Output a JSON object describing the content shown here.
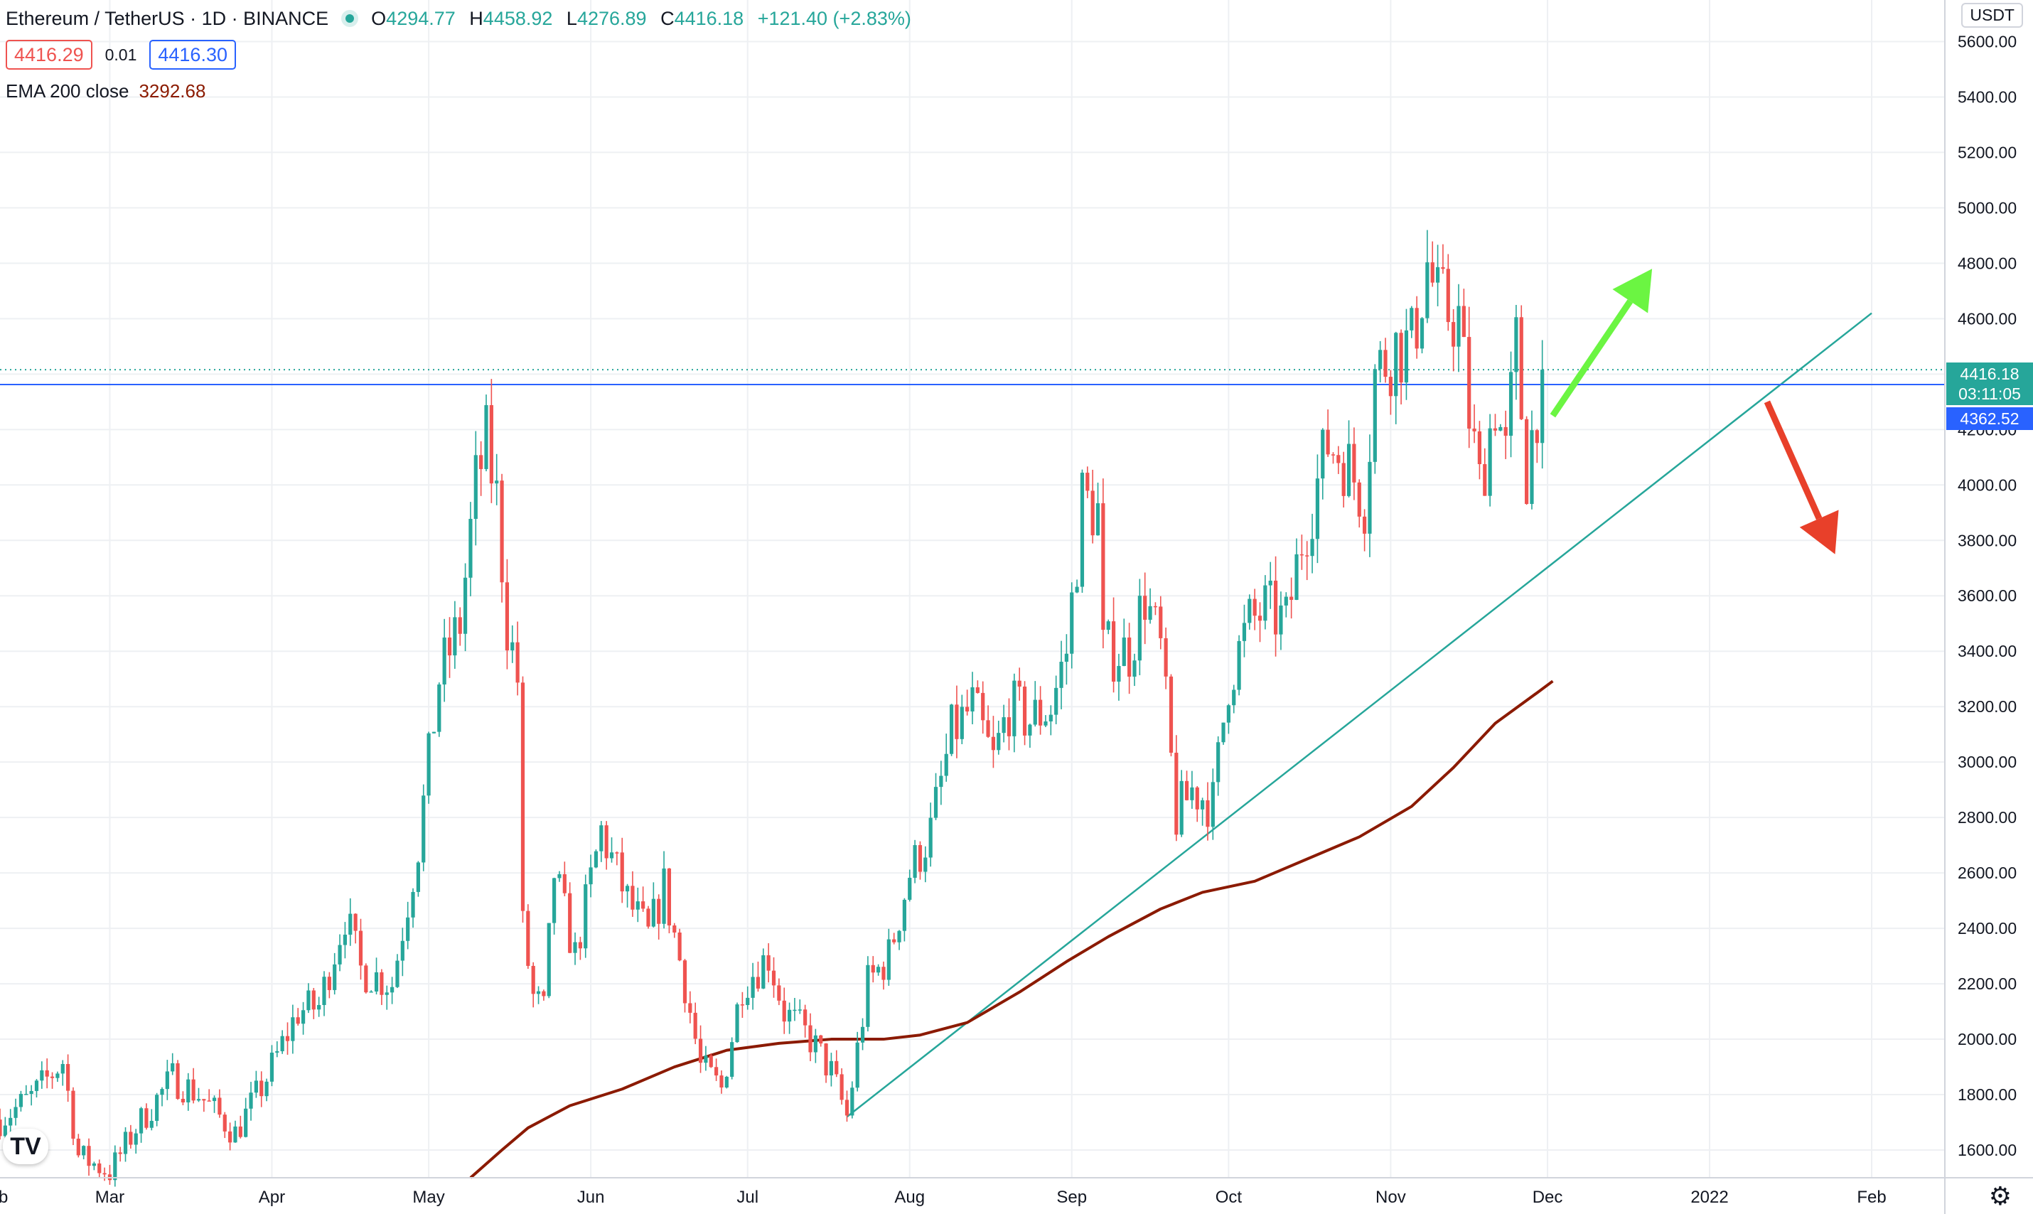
{
  "header": {
    "symbol": "Ethereum / TetherUS · 1D · BINANCE",
    "open_label": "O",
    "open": "4294.77",
    "high_label": "H",
    "high": "4458.92",
    "low_label": "L",
    "low": "4276.89",
    "close_label": "C",
    "close": "4416.18",
    "change": "+121.40 (+2.83%)",
    "sell_price": "4416.29",
    "spread": "0.01",
    "buy_price": "4416.30",
    "indicator_label": "EMA 200 close",
    "indicator_value": "3292.68"
  },
  "price_axis": {
    "unit": "USDT",
    "current_price": "4416.18",
    "countdown": "03:11:05",
    "line_price": "4362.52"
  },
  "colors": {
    "up": "#26a69a",
    "down": "#ef5350",
    "ema": "#8b1a00",
    "horizontal_line": "#2962ff",
    "trendline": "#26a69a",
    "arrow_up": "#6bf542",
    "arrow_down": "#e8402a"
  },
  "icons": {
    "logo": "tradingview-logo-icon",
    "settings": "gear-icon"
  },
  "chart_data": {
    "type": "candlestick",
    "ylim": [
      1500,
      5750
    ],
    "y_ticks": [
      1600,
      1800,
      2000,
      2200,
      2400,
      2600,
      2800,
      3000,
      3200,
      3400,
      3600,
      3800,
      4000,
      4200,
      4400,
      4600,
      4800,
      5000,
      5200,
      5400,
      5600
    ],
    "x_ticks": [
      {
        "label": "Mar",
        "date": "2021-03-01"
      },
      {
        "label": "Apr",
        "date": "2021-04-01"
      },
      {
        "label": "May",
        "date": "2021-05-01"
      },
      {
        "label": "Jun",
        "date": "2021-06-01"
      },
      {
        "label": "Jul",
        "date": "2021-07-01"
      },
      {
        "label": "Aug",
        "date": "2021-08-01"
      },
      {
        "label": "Sep",
        "date": "2021-09-01"
      },
      {
        "label": "Oct",
        "date": "2021-10-01"
      },
      {
        "label": "Nov",
        "date": "2021-11-01"
      },
      {
        "label": "Dec",
        "date": "2021-12-01"
      },
      {
        "label": "2022",
        "date": "2022-01-01"
      },
      {
        "label": "Feb",
        "date": "2022-02-01"
      }
    ],
    "x_edge_label": "b",
    "x_range": [
      "2021-02-08",
      "2022-02-15"
    ],
    "close_path": [
      [
        "2021-02-08",
        1710
      ],
      [
        "2021-02-14",
        1790
      ],
      [
        "2021-02-20",
        1920
      ],
      [
        "2021-02-23",
        1580
      ],
      [
        "2021-03-01",
        1520
      ],
      [
        "2021-03-06",
        1680
      ],
      [
        "2021-03-13",
        1860
      ],
      [
        "2021-03-18",
        1800
      ],
      [
        "2021-03-25",
        1660
      ],
      [
        "2021-03-31",
        1860
      ],
      [
        "2021-04-06",
        2100
      ],
      [
        "2021-04-10",
        2120
      ],
      [
        "2021-04-15",
        2450
      ],
      [
        "2021-04-18",
        2250
      ],
      [
        "2021-04-24",
        2200
      ],
      [
        "2021-04-29",
        2700
      ],
      [
        "2021-05-03",
        3300
      ],
      [
        "2021-05-07",
        3500
      ],
      [
        "2021-05-10",
        4000
      ],
      [
        "2021-05-12",
        4150
      ],
      [
        "2021-05-14",
        3950
      ],
      [
        "2021-05-16",
        3500
      ],
      [
        "2021-05-18",
        3300
      ],
      [
        "2021-05-19",
        2400
      ],
      [
        "2021-05-21",
        2150
      ],
      [
        "2021-05-23",
        2100
      ],
      [
        "2021-05-25",
        2600
      ],
      [
        "2021-05-29",
        2300
      ],
      [
        "2021-06-03",
        2750
      ],
      [
        "2021-06-08",
        2500
      ],
      [
        "2021-06-12",
        2370
      ],
      [
        "2021-06-15",
        2550
      ],
      [
        "2021-06-19",
        2200
      ],
      [
        "2021-06-22",
        1900
      ],
      [
        "2021-06-26",
        1820
      ],
      [
        "2021-06-30",
        2200
      ],
      [
        "2021-07-05",
        2300
      ],
      [
        "2021-07-08",
        2100
      ],
      [
        "2021-07-13",
        2000
      ],
      [
        "2021-07-17",
        1880
      ],
      [
        "2021-07-20",
        1720
      ],
      [
        "2021-07-24",
        2200
      ],
      [
        "2021-07-28",
        2300
      ],
      [
        "2021-08-01",
        2600
      ],
      [
        "2021-08-05",
        2750
      ],
      [
        "2021-08-09",
        3100
      ],
      [
        "2021-08-13",
        3200
      ],
      [
        "2021-08-17",
        3000
      ],
      [
        "2021-08-20",
        3200
      ],
      [
        "2021-08-24",
        3150
      ],
      [
        "2021-08-28",
        3200
      ],
      [
        "2021-08-31",
        3400
      ],
      [
        "2021-09-02",
        3750
      ],
      [
        "2021-09-03",
        3950
      ],
      [
        "2021-09-06",
        3900
      ],
      [
        "2021-09-07",
        3400
      ],
      [
        "2021-09-12",
        3400
      ],
      [
        "2021-09-15",
        3600
      ],
      [
        "2021-09-18",
        3400
      ],
      [
        "2021-09-21",
        2800
      ],
      [
        "2021-09-24",
        2900
      ],
      [
        "2021-09-28",
        2850
      ],
      [
        "2021-10-01",
        3300
      ],
      [
        "2021-10-05",
        3500
      ],
      [
        "2021-10-08",
        3550
      ],
      [
        "2021-10-12",
        3500
      ],
      [
        "2021-10-15",
        3800
      ],
      [
        "2021-10-20",
        4150
      ],
      [
        "2021-10-23",
        4100
      ],
      [
        "2021-10-27",
        3950
      ],
      [
        "2021-10-29",
        4400
      ],
      [
        "2021-11-02",
        4500
      ],
      [
        "2021-11-05",
        4500
      ],
      [
        "2021-11-08",
        4800
      ],
      [
        "2021-11-10",
        4650
      ],
      [
        "2021-11-14",
        4600
      ],
      [
        "2021-11-16",
        4250
      ],
      [
        "2021-11-18",
        4000
      ],
      [
        "2021-11-21",
        4300
      ],
      [
        "2021-11-23",
        4100
      ],
      [
        "2021-11-25",
        4500
      ],
      [
        "2021-11-27",
        4050
      ],
      [
        "2021-11-29",
        4300
      ],
      [
        "2021-11-30",
        4416
      ]
    ],
    "ema_line": [
      [
        "2021-05-09",
        1500
      ],
      [
        "2021-05-15",
        1600
      ],
      [
        "2021-05-20",
        1680
      ],
      [
        "2021-05-28",
        1760
      ],
      [
        "2021-06-07",
        1820
      ],
      [
        "2021-06-17",
        1900
      ],
      [
        "2021-06-27",
        1960
      ],
      [
        "2021-07-07",
        1985
      ],
      [
        "2021-07-17",
        2000
      ],
      [
        "2021-07-27",
        2000
      ],
      [
        "2021-08-03",
        2015
      ],
      [
        "2021-08-12",
        2060
      ],
      [
        "2021-08-22",
        2170
      ],
      [
        "2021-08-31",
        2280
      ],
      [
        "2021-09-08",
        2370
      ],
      [
        "2021-09-18",
        2470
      ],
      [
        "2021-09-26",
        2530
      ],
      [
        "2021-10-06",
        2570
      ],
      [
        "2021-10-16",
        2650
      ],
      [
        "2021-10-26",
        2730
      ],
      [
        "2021-11-05",
        2840
      ],
      [
        "2021-11-13",
        2980
      ],
      [
        "2021-11-21",
        3140
      ],
      [
        "2021-11-29",
        3250
      ],
      [
        "2021-12-02",
        3292
      ]
    ],
    "horizontal_line": {
      "price": 4362.52
    },
    "trendline": {
      "from": [
        "2021-07-20",
        1720
      ],
      "to": [
        "2022-02-01",
        4620
      ]
    },
    "arrows": [
      {
        "direction": "up",
        "from": [
          "2021-12-02",
          4250
        ],
        "to": [
          "2021-12-21",
          4780
        ]
      },
      {
        "direction": "down",
        "from": [
          "2022-01-12",
          4300
        ],
        "to": [
          "2022-01-25",
          3750
        ]
      }
    ]
  }
}
